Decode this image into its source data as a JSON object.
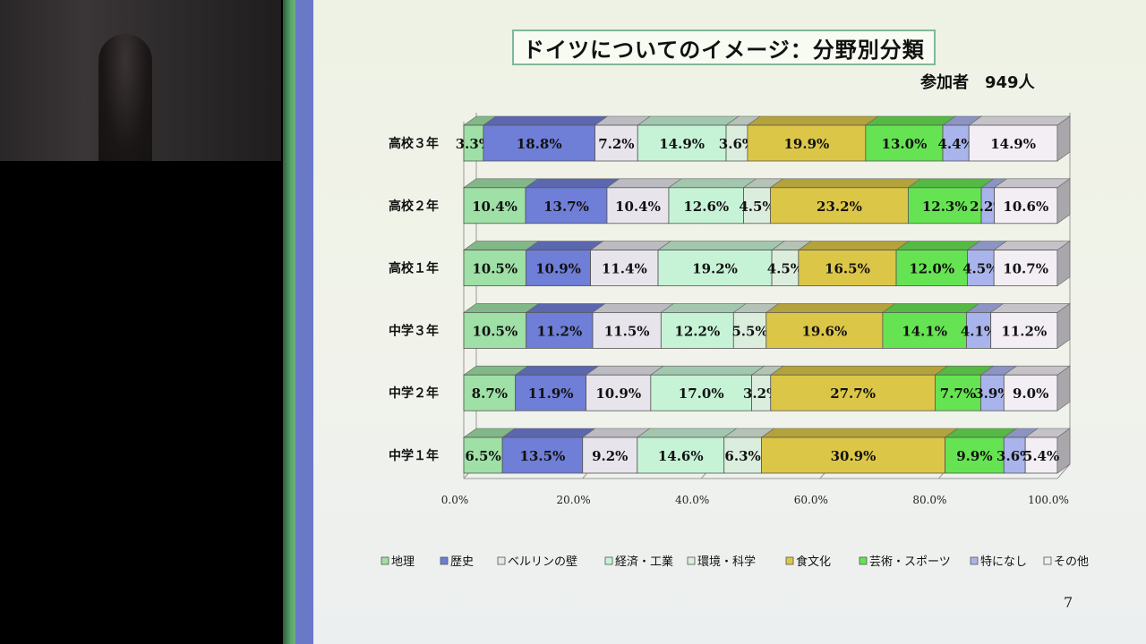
{
  "slide": {
    "participants": "参加者　949人",
    "page_number": "7"
  },
  "chart_data": {
    "type": "bar",
    "orientation": "horizontal",
    "stacked": "percent",
    "title": "ドイツについてのイメージ：分野別分類",
    "categories": [
      "高校３年",
      "高校２年",
      "高校１年",
      "中学３年",
      "中学２年",
      "中学１年"
    ],
    "x_ticks": [
      "0.0%",
      "20.0%",
      "40.0%",
      "60.0%",
      "80.0%",
      "100.0%"
    ],
    "xlim": [
      0,
      100
    ],
    "legend_position": "bottom",
    "series": [
      {
        "name": "地理",
        "color": "#9fe0a6",
        "values": [
          3.3,
          10.4,
          10.5,
          10.5,
          8.7,
          6.5
        ],
        "labels": [
          "3.3%",
          "10.4%",
          "10.5%",
          "10.5%",
          "8.7%",
          "6.5%"
        ]
      },
      {
        "name": "歴史",
        "color": "#6f7ed6",
        "values": [
          18.8,
          13.7,
          10.9,
          11.2,
          11.9,
          13.5
        ],
        "labels": [
          "18.8%",
          "13.7%",
          "10.9%",
          "11.2%",
          "11.9%",
          "13.5%"
        ]
      },
      {
        "name": "ベルリンの壁",
        "color": "#e7e4ec",
        "values": [
          7.2,
          10.4,
          11.4,
          11.5,
          10.9,
          9.2
        ],
        "labels": [
          "7.2%",
          "10.4%",
          "11.4%",
          "11.5%",
          "10.9%",
          "9.2%"
        ]
      },
      {
        "name": "経済・工業",
        "color": "#c6f3d6",
        "values": [
          14.9,
          12.6,
          19.2,
          12.2,
          17.0,
          14.6
        ],
        "labels": [
          "14.9%",
          "12.6%",
          "19.2%",
          "12.2%",
          "17.0%",
          "14.6%"
        ]
      },
      {
        "name": "環境・科学",
        "color": "#dbeede",
        "values": [
          3.6,
          4.5,
          4.5,
          5.5,
          3.2,
          6.3
        ],
        "labels": [
          "3.6%",
          "4.5%",
          "4.5%",
          "5.5%",
          "3.2%",
          "6.3%"
        ]
      },
      {
        "name": "食文化",
        "color": "#dcc648",
        "values": [
          19.9,
          23.2,
          16.5,
          19.6,
          27.7,
          30.9
        ],
        "labels": [
          "19.9%",
          "23.2%",
          "16.5%",
          "19.6%",
          "27.7%",
          "30.9%"
        ]
      },
      {
        "name": "芸術・スポーツ",
        "color": "#66e352",
        "values": [
          13.0,
          12.3,
          12.0,
          14.1,
          7.7,
          9.9
        ],
        "labels": [
          "13.0%",
          "12.3%",
          "12.0%",
          "14.1%",
          "7.7%",
          "9.9%"
        ]
      },
      {
        "name": "特になし",
        "color": "#a9b4ec",
        "values": [
          4.4,
          2.2,
          4.5,
          4.1,
          3.9,
          3.6
        ],
        "labels": [
          "4.4%",
          "2.2%",
          "4.5%",
          "4.1%",
          "3.9%",
          "3.6%"
        ]
      },
      {
        "name": "その他",
        "color": "#f2eef4",
        "values": [
          14.9,
          10.6,
          10.7,
          11.2,
          9.0,
          5.4
        ],
        "labels": [
          "14.9%",
          "10.6%",
          "10.7%",
          "11.2%",
          "9.0%",
          "5.4%"
        ]
      }
    ]
  }
}
